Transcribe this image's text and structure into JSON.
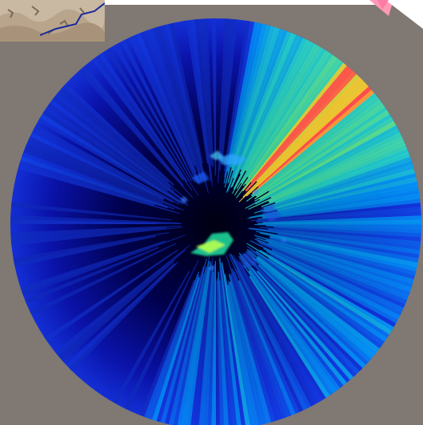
{
  "image": {
    "kind": "radar-reflectivity-sweep",
    "background_color": "#7f7873",
    "field_color_low": "#00007a",
    "field_color_mid": "#00c8ff",
    "field_color_high": "#ff1a5a",
    "inset": "terrain-map-thumbnail"
  }
}
